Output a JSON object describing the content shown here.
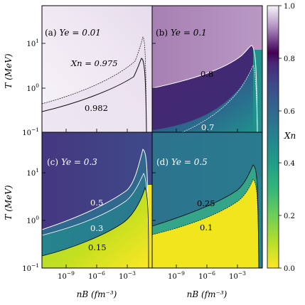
{
  "chart_data": {
    "type": "heatmap",
    "colormap": "viridis",
    "colorbar": {
      "label": "X_n",
      "min": 0.0,
      "max": 1.0,
      "ticks": [
        "0.0",
        "0.2",
        "0.4",
        "0.6",
        "0.8",
        "1.0"
      ]
    },
    "xlabel": "n_B (fm^-3)",
    "ylabel": "T (MeV)",
    "x_scale": "log",
    "y_scale": "log",
    "x_ticks": [
      "10^-9",
      "10^-6",
      "10^-3"
    ],
    "y_ticks": [
      "10^-1",
      "10^0",
      "10^1"
    ],
    "xlim": [
      1e-12,
      1
    ],
    "ylim": [
      0.1,
      60
    ],
    "panels": [
      {
        "label": "(a)",
        "Ye": "Y_e = 0.01",
        "contours": [
          {
            "level": "X_n = 0.975",
            "color": "#000000"
          },
          {
            "level": "0.982",
            "color": "#000000"
          }
        ]
      },
      {
        "label": "(b)",
        "Ye": "Y_e = 0.1",
        "contours": [
          {
            "level": "0.8",
            "color": "#ffffff"
          },
          {
            "level": "0.7",
            "color": "#ffffff"
          }
        ]
      },
      {
        "label": "(c)",
        "Ye": "Y_e = 0.3",
        "contours": [
          {
            "level": "0.5",
            "color": "#ffffff"
          },
          {
            "level": "0.3",
            "color": "#ffffff"
          },
          {
            "level": "0.15",
            "color": "#000000"
          }
        ]
      },
      {
        "label": "(d)",
        "Ye": "Y_e = 0.5",
        "contours": [
          {
            "level": "0.25",
            "color": "#000000"
          },
          {
            "level": "0.1",
            "color": "#000000"
          }
        ]
      }
    ]
  }
}
